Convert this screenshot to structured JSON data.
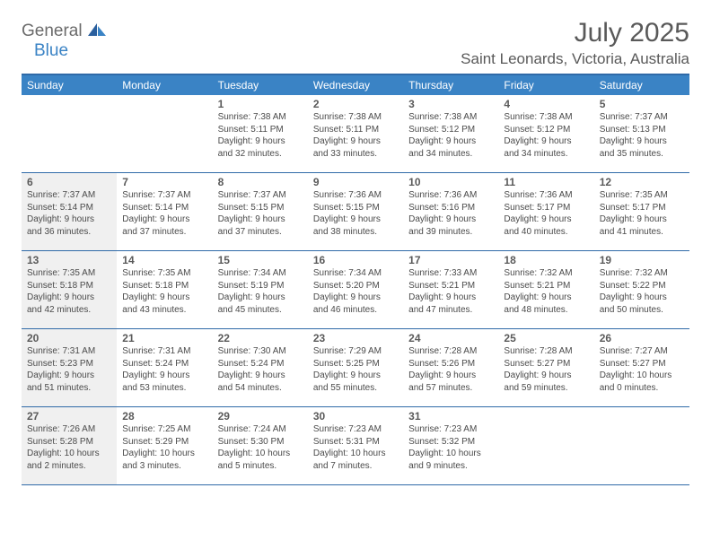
{
  "logo": {
    "text1": "General",
    "text2": "Blue"
  },
  "title": "July 2025",
  "location": "Saint Leonards, Victoria, Australia",
  "colors": {
    "header_bg": "#3a83c5",
    "border": "#2f6aa8",
    "off_bg": "#f0f0f0",
    "text": "#4a4a4a",
    "title_text": "#595959"
  },
  "dayNames": [
    "Sunday",
    "Monday",
    "Tuesday",
    "Wednesday",
    "Thursday",
    "Friday",
    "Saturday"
  ],
  "weeks": [
    [
      null,
      null,
      {
        "n": "1",
        "sr": "Sunrise: 7:38 AM",
        "ss": "Sunset: 5:11 PM",
        "d1": "Daylight: 9 hours",
        "d2": "and 32 minutes."
      },
      {
        "n": "2",
        "sr": "Sunrise: 7:38 AM",
        "ss": "Sunset: 5:11 PM",
        "d1": "Daylight: 9 hours",
        "d2": "and 33 minutes."
      },
      {
        "n": "3",
        "sr": "Sunrise: 7:38 AM",
        "ss": "Sunset: 5:12 PM",
        "d1": "Daylight: 9 hours",
        "d2": "and 34 minutes."
      },
      {
        "n": "4",
        "sr": "Sunrise: 7:38 AM",
        "ss": "Sunset: 5:12 PM",
        "d1": "Daylight: 9 hours",
        "d2": "and 34 minutes."
      },
      {
        "n": "5",
        "sr": "Sunrise: 7:37 AM",
        "ss": "Sunset: 5:13 PM",
        "d1": "Daylight: 9 hours",
        "d2": "and 35 minutes."
      }
    ],
    [
      {
        "n": "6",
        "sr": "Sunrise: 7:37 AM",
        "ss": "Sunset: 5:14 PM",
        "d1": "Daylight: 9 hours",
        "d2": "and 36 minutes.",
        "off": true
      },
      {
        "n": "7",
        "sr": "Sunrise: 7:37 AM",
        "ss": "Sunset: 5:14 PM",
        "d1": "Daylight: 9 hours",
        "d2": "and 37 minutes."
      },
      {
        "n": "8",
        "sr": "Sunrise: 7:37 AM",
        "ss": "Sunset: 5:15 PM",
        "d1": "Daylight: 9 hours",
        "d2": "and 37 minutes."
      },
      {
        "n": "9",
        "sr": "Sunrise: 7:36 AM",
        "ss": "Sunset: 5:15 PM",
        "d1": "Daylight: 9 hours",
        "d2": "and 38 minutes."
      },
      {
        "n": "10",
        "sr": "Sunrise: 7:36 AM",
        "ss": "Sunset: 5:16 PM",
        "d1": "Daylight: 9 hours",
        "d2": "and 39 minutes."
      },
      {
        "n": "11",
        "sr": "Sunrise: 7:36 AM",
        "ss": "Sunset: 5:17 PM",
        "d1": "Daylight: 9 hours",
        "d2": "and 40 minutes."
      },
      {
        "n": "12",
        "sr": "Sunrise: 7:35 AM",
        "ss": "Sunset: 5:17 PM",
        "d1": "Daylight: 9 hours",
        "d2": "and 41 minutes."
      }
    ],
    [
      {
        "n": "13",
        "sr": "Sunrise: 7:35 AM",
        "ss": "Sunset: 5:18 PM",
        "d1": "Daylight: 9 hours",
        "d2": "and 42 minutes.",
        "off": true
      },
      {
        "n": "14",
        "sr": "Sunrise: 7:35 AM",
        "ss": "Sunset: 5:18 PM",
        "d1": "Daylight: 9 hours",
        "d2": "and 43 minutes."
      },
      {
        "n": "15",
        "sr": "Sunrise: 7:34 AM",
        "ss": "Sunset: 5:19 PM",
        "d1": "Daylight: 9 hours",
        "d2": "and 45 minutes."
      },
      {
        "n": "16",
        "sr": "Sunrise: 7:34 AM",
        "ss": "Sunset: 5:20 PM",
        "d1": "Daylight: 9 hours",
        "d2": "and 46 minutes."
      },
      {
        "n": "17",
        "sr": "Sunrise: 7:33 AM",
        "ss": "Sunset: 5:21 PM",
        "d1": "Daylight: 9 hours",
        "d2": "and 47 minutes."
      },
      {
        "n": "18",
        "sr": "Sunrise: 7:32 AM",
        "ss": "Sunset: 5:21 PM",
        "d1": "Daylight: 9 hours",
        "d2": "and 48 minutes."
      },
      {
        "n": "19",
        "sr": "Sunrise: 7:32 AM",
        "ss": "Sunset: 5:22 PM",
        "d1": "Daylight: 9 hours",
        "d2": "and 50 minutes."
      }
    ],
    [
      {
        "n": "20",
        "sr": "Sunrise: 7:31 AM",
        "ss": "Sunset: 5:23 PM",
        "d1": "Daylight: 9 hours",
        "d2": "and 51 minutes.",
        "off": true
      },
      {
        "n": "21",
        "sr": "Sunrise: 7:31 AM",
        "ss": "Sunset: 5:24 PM",
        "d1": "Daylight: 9 hours",
        "d2": "and 53 minutes."
      },
      {
        "n": "22",
        "sr": "Sunrise: 7:30 AM",
        "ss": "Sunset: 5:24 PM",
        "d1": "Daylight: 9 hours",
        "d2": "and 54 minutes."
      },
      {
        "n": "23",
        "sr": "Sunrise: 7:29 AM",
        "ss": "Sunset: 5:25 PM",
        "d1": "Daylight: 9 hours",
        "d2": "and 55 minutes."
      },
      {
        "n": "24",
        "sr": "Sunrise: 7:28 AM",
        "ss": "Sunset: 5:26 PM",
        "d1": "Daylight: 9 hours",
        "d2": "and 57 minutes."
      },
      {
        "n": "25",
        "sr": "Sunrise: 7:28 AM",
        "ss": "Sunset: 5:27 PM",
        "d1": "Daylight: 9 hours",
        "d2": "and 59 minutes."
      },
      {
        "n": "26",
        "sr": "Sunrise: 7:27 AM",
        "ss": "Sunset: 5:27 PM",
        "d1": "Daylight: 10 hours",
        "d2": "and 0 minutes."
      }
    ],
    [
      {
        "n": "27",
        "sr": "Sunrise: 7:26 AM",
        "ss": "Sunset: 5:28 PM",
        "d1": "Daylight: 10 hours",
        "d2": "and 2 minutes.",
        "off": true
      },
      {
        "n": "28",
        "sr": "Sunrise: 7:25 AM",
        "ss": "Sunset: 5:29 PM",
        "d1": "Daylight: 10 hours",
        "d2": "and 3 minutes."
      },
      {
        "n": "29",
        "sr": "Sunrise: 7:24 AM",
        "ss": "Sunset: 5:30 PM",
        "d1": "Daylight: 10 hours",
        "d2": "and 5 minutes."
      },
      {
        "n": "30",
        "sr": "Sunrise: 7:23 AM",
        "ss": "Sunset: 5:31 PM",
        "d1": "Daylight: 10 hours",
        "d2": "and 7 minutes."
      },
      {
        "n": "31",
        "sr": "Sunrise: 7:23 AM",
        "ss": "Sunset: 5:32 PM",
        "d1": "Daylight: 10 hours",
        "d2": "and 9 minutes."
      },
      null,
      null
    ]
  ]
}
